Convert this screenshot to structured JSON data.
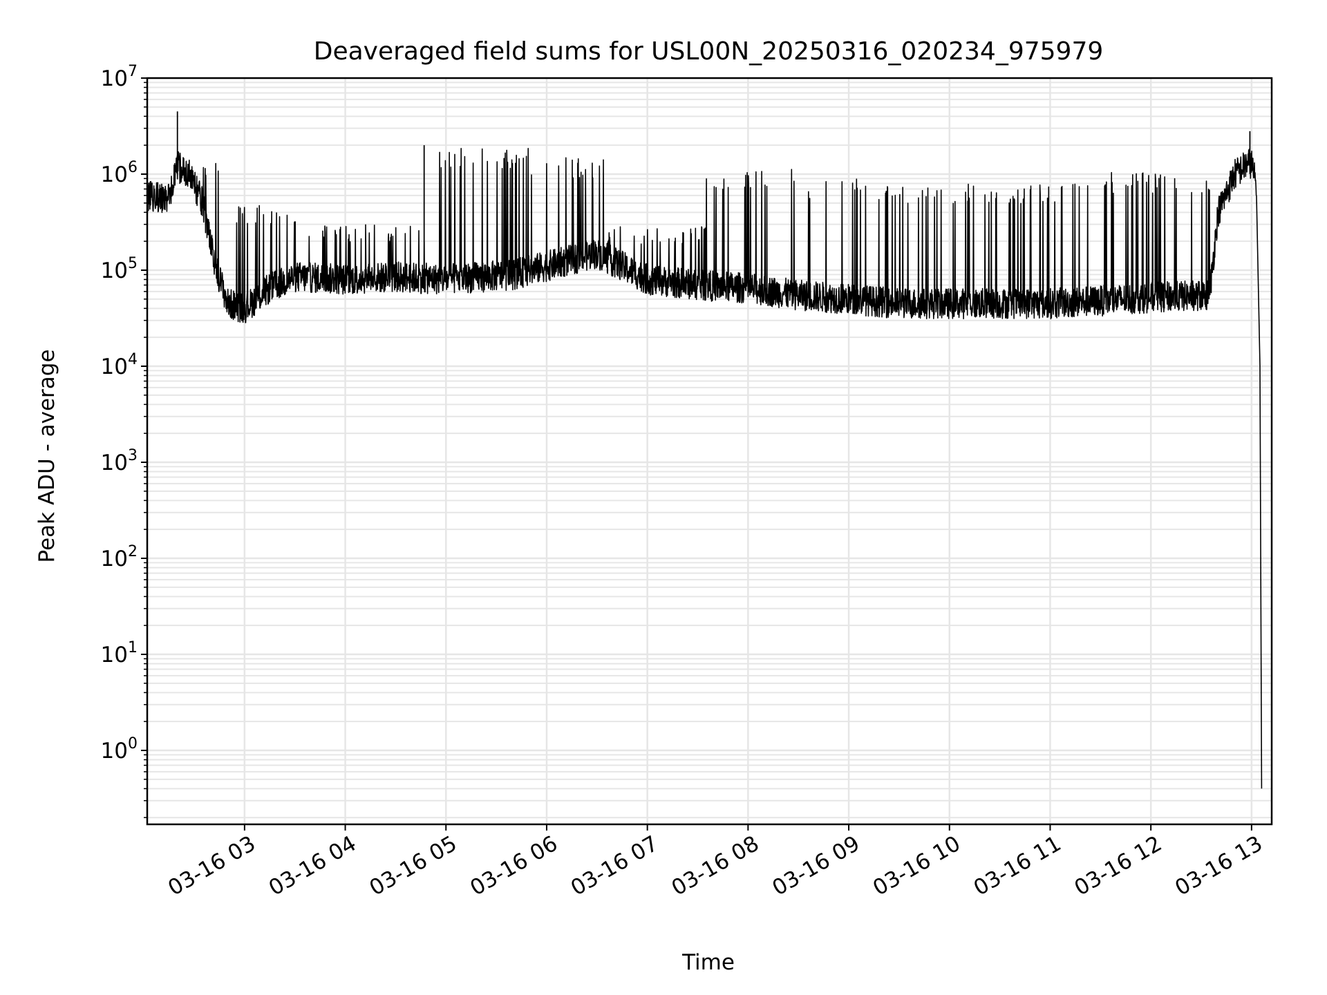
{
  "chart_data": {
    "type": "line",
    "title": "Deaveraged field sums for USL00N_20250316_020234_975979",
    "xlabel": "Time",
    "ylabel": "Peak ADU - average",
    "y_scale": "log",
    "ylim": [
      0.17,
      10000000
    ],
    "xlim": [
      "03-16 02:02",
      "03-16 13:12"
    ],
    "x_tick_labels": [
      "03-16 03",
      "03-16 04",
      "03-16 05",
      "03-16 06",
      "03-16 07",
      "03-16 08",
      "03-16 09",
      "03-16 10",
      "03-16 11",
      "03-16 12",
      "03-16 13"
    ],
    "y_ticks": [
      {
        "exp": "0",
        "value": 1
      },
      {
        "exp": "1",
        "value": 10
      },
      {
        "exp": "2",
        "value": 100
      },
      {
        "exp": "3",
        "value": 1000
      },
      {
        "exp": "4",
        "value": 10000
      },
      {
        "exp": "5",
        "value": 100000
      },
      {
        "exp": "6",
        "value": 1000000
      },
      {
        "exp": "7",
        "value": 10000000
      }
    ],
    "y_tick_base": "10",
    "grid": true,
    "legend": "none",
    "series_color": "#000000",
    "grid_color": "#e6e6e6",
    "baseline": [
      {
        "x": "03-16 02:02",
        "y": 600000
      },
      {
        "x": "03-16 02:15",
        "y": 550000
      },
      {
        "x": "03-16 02:20",
        "y": 1200000
      },
      {
        "x": "03-16 02:27",
        "y": 1000000
      },
      {
        "x": "03-16 02:35",
        "y": 500000
      },
      {
        "x": "03-16 02:42",
        "y": 120000
      },
      {
        "x": "03-16 02:50",
        "y": 45000
      },
      {
        "x": "03-16 03:00",
        "y": 40000
      },
      {
        "x": "03-16 03:15",
        "y": 65000
      },
      {
        "x": "03-16 03:30",
        "y": 85000
      },
      {
        "x": "03-16 04:00",
        "y": 80000
      },
      {
        "x": "03-16 04:30",
        "y": 85000
      },
      {
        "x": "03-16 05:00",
        "y": 80000
      },
      {
        "x": "03-16 05:40",
        "y": 90000
      },
      {
        "x": "03-16 06:00",
        "y": 110000
      },
      {
        "x": "03-16 06:30",
        "y": 150000
      },
      {
        "x": "03-16 06:45",
        "y": 110000
      },
      {
        "x": "03-16 07:00",
        "y": 80000
      },
      {
        "x": "03-16 07:30",
        "y": 70000
      },
      {
        "x": "03-16 08:00",
        "y": 65000
      },
      {
        "x": "03-16 08:30",
        "y": 55000
      },
      {
        "x": "03-16 09:00",
        "y": 50000
      },
      {
        "x": "03-16 09:30",
        "y": 45000
      },
      {
        "x": "03-16 10:00",
        "y": 45000
      },
      {
        "x": "03-16 10:30",
        "y": 45000
      },
      {
        "x": "03-16 11:00",
        "y": 45000
      },
      {
        "x": "03-16 11:30",
        "y": 48000
      },
      {
        "x": "03-16 12:00",
        "y": 52000
      },
      {
        "x": "03-16 12:35",
        "y": 55000
      },
      {
        "x": "03-16 12:40",
        "y": 400000
      },
      {
        "x": "03-16 12:50",
        "y": 1000000
      },
      {
        "x": "03-16 12:58",
        "y": 1300000
      },
      {
        "x": "03-16 13:00",
        "y": 1300000
      },
      {
        "x": "03-16 13:03",
        "y": 700000
      },
      {
        "x": "03-16 13:05",
        "y": 10000
      },
      {
        "x": "03-16 13:06",
        "y": 0.4
      }
    ],
    "spike_envelope": [
      {
        "from": "03-16 02:35",
        "to": "03-16 02:55",
        "y": 1500000
      },
      {
        "from": "03-16 02:55",
        "to": "03-16 03:35",
        "y": 500000
      },
      {
        "from": "03-16 03:35",
        "to": "03-16 04:50",
        "y": 300000
      },
      {
        "from": "03-16 04:50",
        "to": "03-16 05:50",
        "y": 1900000
      },
      {
        "from": "03-16 05:50",
        "to": "03-16 06:35",
        "y": 1500000
      },
      {
        "from": "03-16 06:35",
        "to": "03-16 07:35",
        "y": 300000
      },
      {
        "from": "03-16 07:35",
        "to": "03-16 08:35",
        "y": 1150000
      },
      {
        "from": "03-16 08:35",
        "to": "03-16 09:30",
        "y": 900000
      },
      {
        "from": "03-16 09:30",
        "to": "03-16 11:30",
        "y": 800000
      },
      {
        "from": "03-16 11:30",
        "to": "03-16 12:35",
        "y": 1050000
      }
    ],
    "peak_points": [
      {
        "x": "03-16 02:20",
        "y": 4500000
      },
      {
        "x": "03-16 12:59",
        "y": 2800000
      },
      {
        "x": "03-16 04:47",
        "y": 2000000
      },
      {
        "x": "03-16 13:06",
        "y": 0.4
      }
    ]
  }
}
